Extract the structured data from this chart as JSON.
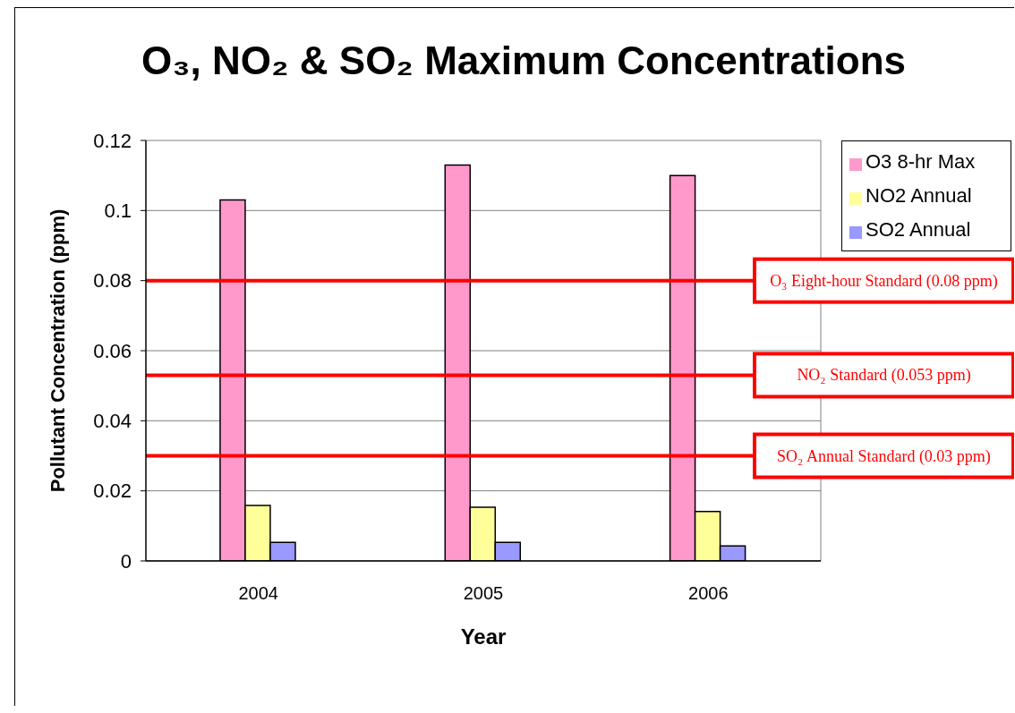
{
  "chart_data": {
    "type": "bar",
    "title": "O₃, NO₂ & SO₂ Maximum Concentrations",
    "xlabel": "Year",
    "ylabel": "Pollutant Concentration (ppm)",
    "categories": [
      "2004",
      "2005",
      "2006"
    ],
    "series": [
      {
        "name": "O3 8-hr Max",
        "color": "#ff99cc",
        "values": [
          0.103,
          0.113,
          0.11
        ]
      },
      {
        "name": "NO2 Annual",
        "color": "#ffff99",
        "values": [
          0.0158,
          0.0153,
          0.0141
        ]
      },
      {
        "name": "SO2 Annual",
        "color": "#9999ff",
        "values": [
          0.0053,
          0.0053,
          0.0043
        ]
      }
    ],
    "ylim": [
      0,
      0.12
    ],
    "yticks": [
      0,
      0.02,
      0.04,
      0.06,
      0.08,
      0.1,
      0.12
    ],
    "grid": "y",
    "legend": "top right",
    "ref_lines": [
      {
        "axis": "y",
        "value": 0.08,
        "label": "O₃ Eight-hour Standard (0.08 ppm)",
        "color": "#ff0000"
      },
      {
        "axis": "y",
        "value": 0.053,
        "label": "NO₂ Standard (0.053 ppm)",
        "color": "#ff0000"
      },
      {
        "axis": "y",
        "value": 0.03,
        "label": "SO₂ Annual Standard (0.03 ppm)",
        "color": "#ff0000"
      }
    ]
  }
}
